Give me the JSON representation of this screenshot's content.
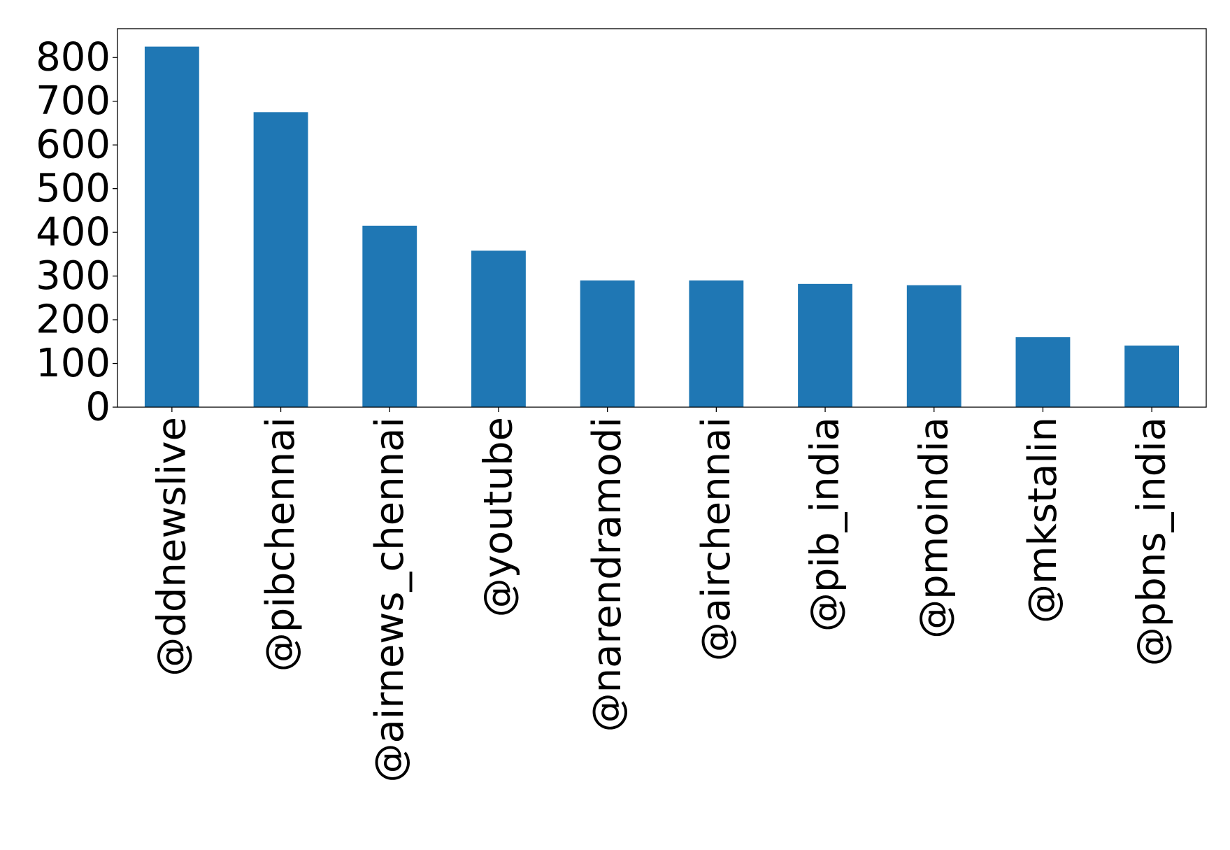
{
  "chart_data": {
    "type": "bar",
    "title": "",
    "xlabel": "",
    "ylabel": "",
    "categories": [
      "@ddnewslive",
      "@pibchennai",
      "@airnews_chennai",
      "@youtube",
      "@narendramodi",
      "@airchennai",
      "@pib_india",
      "@pmoindia",
      "@mkstalin",
      "@pbns_india"
    ],
    "values": [
      825,
      675,
      415,
      358,
      290,
      290,
      282,
      279,
      160,
      141
    ],
    "yticks": [
      0,
      100,
      200,
      300,
      400,
      500,
      600,
      700,
      800
    ],
    "ylim": [
      0,
      866
    ],
    "bar_color": "#1f77b4",
    "grid": false,
    "legend": "none",
    "x_tick_rotation": "vertical"
  }
}
